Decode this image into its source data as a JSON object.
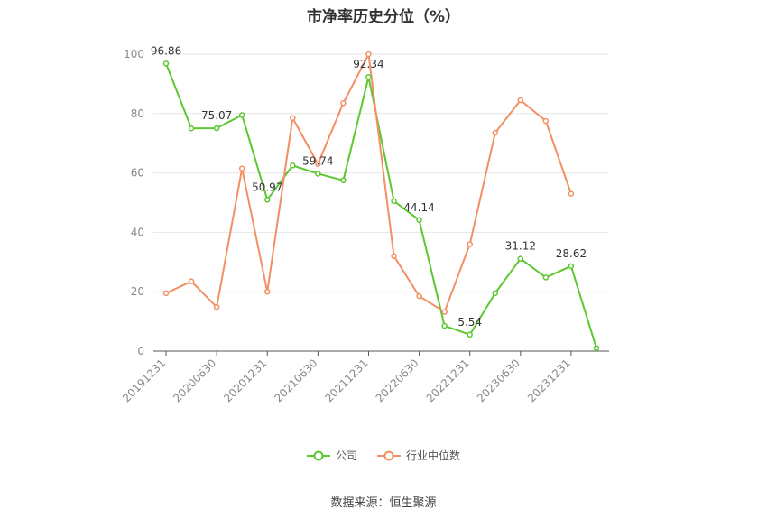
{
  "title": "市净率历史分位（%）",
  "source": "数据来源：恒生聚源",
  "colors": {
    "company": "#5cc72e",
    "industry": "#f28f63",
    "grid": "#e6e6e6",
    "axis": "#555555"
  },
  "chart_data": {
    "type": "line",
    "title": "市净率历史分位（%）",
    "xlabel": "",
    "ylabel": "",
    "ylim": [
      0,
      100
    ],
    "yticks": [
      0,
      20,
      40,
      60,
      80,
      100
    ],
    "grid": true,
    "legend_position": "bottom-center",
    "x": [
      "20191231",
      "20200331",
      "20200630",
      "20200930",
      "20201231",
      "20210331",
      "20210630",
      "20210930",
      "20211231",
      "20220331",
      "20220630",
      "20220930",
      "20221231",
      "20230331",
      "20230630",
      "20230930",
      "20231231",
      "20240331"
    ],
    "x_tick_labels": [
      "20191231",
      "20200630",
      "20201231",
      "20210630",
      "20211231",
      "20220630",
      "20221231",
      "20230630",
      "20231231"
    ],
    "series": [
      {
        "name": "公司",
        "color": "#5cc72e",
        "values": [
          96.86,
          75.0,
          75.07,
          79.5,
          50.97,
          62.5,
          59.74,
          57.5,
          92.34,
          50.5,
          44.14,
          8.5,
          5.54,
          19.5,
          31.12,
          24.8,
          28.62,
          1.0
        ]
      },
      {
        "name": "行业中位数",
        "color": "#f28f63",
        "values": [
          19.5,
          23.5,
          14.8,
          61.5,
          20.0,
          78.5,
          63.0,
          83.5,
          100.0,
          32.0,
          18.5,
          13.2,
          36.0,
          73.5,
          84.5,
          77.5,
          53.0,
          null
        ]
      }
    ],
    "data_labels": [
      {
        "series": 0,
        "index": 0,
        "text": "96.86"
      },
      {
        "series": 0,
        "index": 2,
        "text": "75.07"
      },
      {
        "series": 0,
        "index": 4,
        "text": "50.97"
      },
      {
        "series": 0,
        "index": 6,
        "text": "59.74"
      },
      {
        "series": 0,
        "index": 8,
        "text": "92.34"
      },
      {
        "series": 0,
        "index": 10,
        "text": "44.14"
      },
      {
        "series": 0,
        "index": 12,
        "text": "5.54"
      },
      {
        "series": 0,
        "index": 14,
        "text": "31.12"
      },
      {
        "series": 0,
        "index": 16,
        "text": "28.62"
      }
    ]
  }
}
